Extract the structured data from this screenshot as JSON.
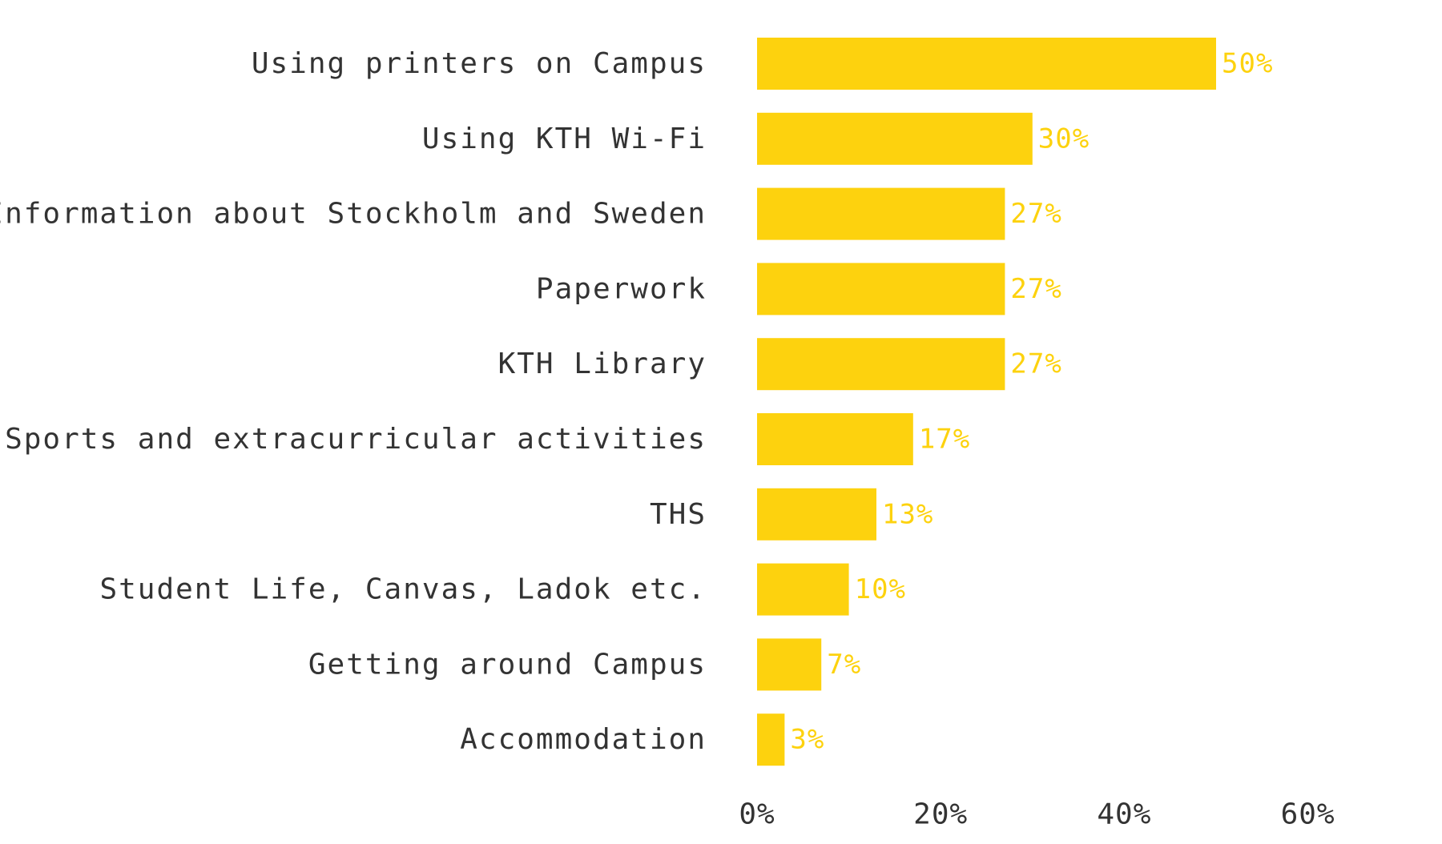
{
  "chart_data": {
    "type": "bar",
    "orientation": "horizontal",
    "categories": [
      "Using printers on Campus",
      "Using KTH Wi-Fi",
      "Information about Stockholm and Sweden",
      "Paperwork",
      "KTH Library",
      "Sports and extracurricular activities",
      "THS",
      "Student Life, Canvas, Ladok etc.",
      "Getting around Campus",
      "Accommodation"
    ],
    "values": [
      50,
      30,
      27,
      27,
      27,
      17,
      13,
      10,
      7,
      3
    ],
    "value_labels": [
      "50%",
      "30%",
      "27%",
      "27%",
      "27%",
      "17%",
      "13%",
      "10%",
      "7%",
      "3%"
    ],
    "x_ticks": [
      0,
      20,
      40,
      60
    ],
    "x_tick_labels": [
      "0%",
      "20%",
      "40%",
      "60%"
    ],
    "xlim": [
      0,
      60
    ],
    "grid": false,
    "legend": "none",
    "colors": {
      "bar": "#FDD20E",
      "value_label": "#FDD20E",
      "text": "#333333"
    }
  }
}
